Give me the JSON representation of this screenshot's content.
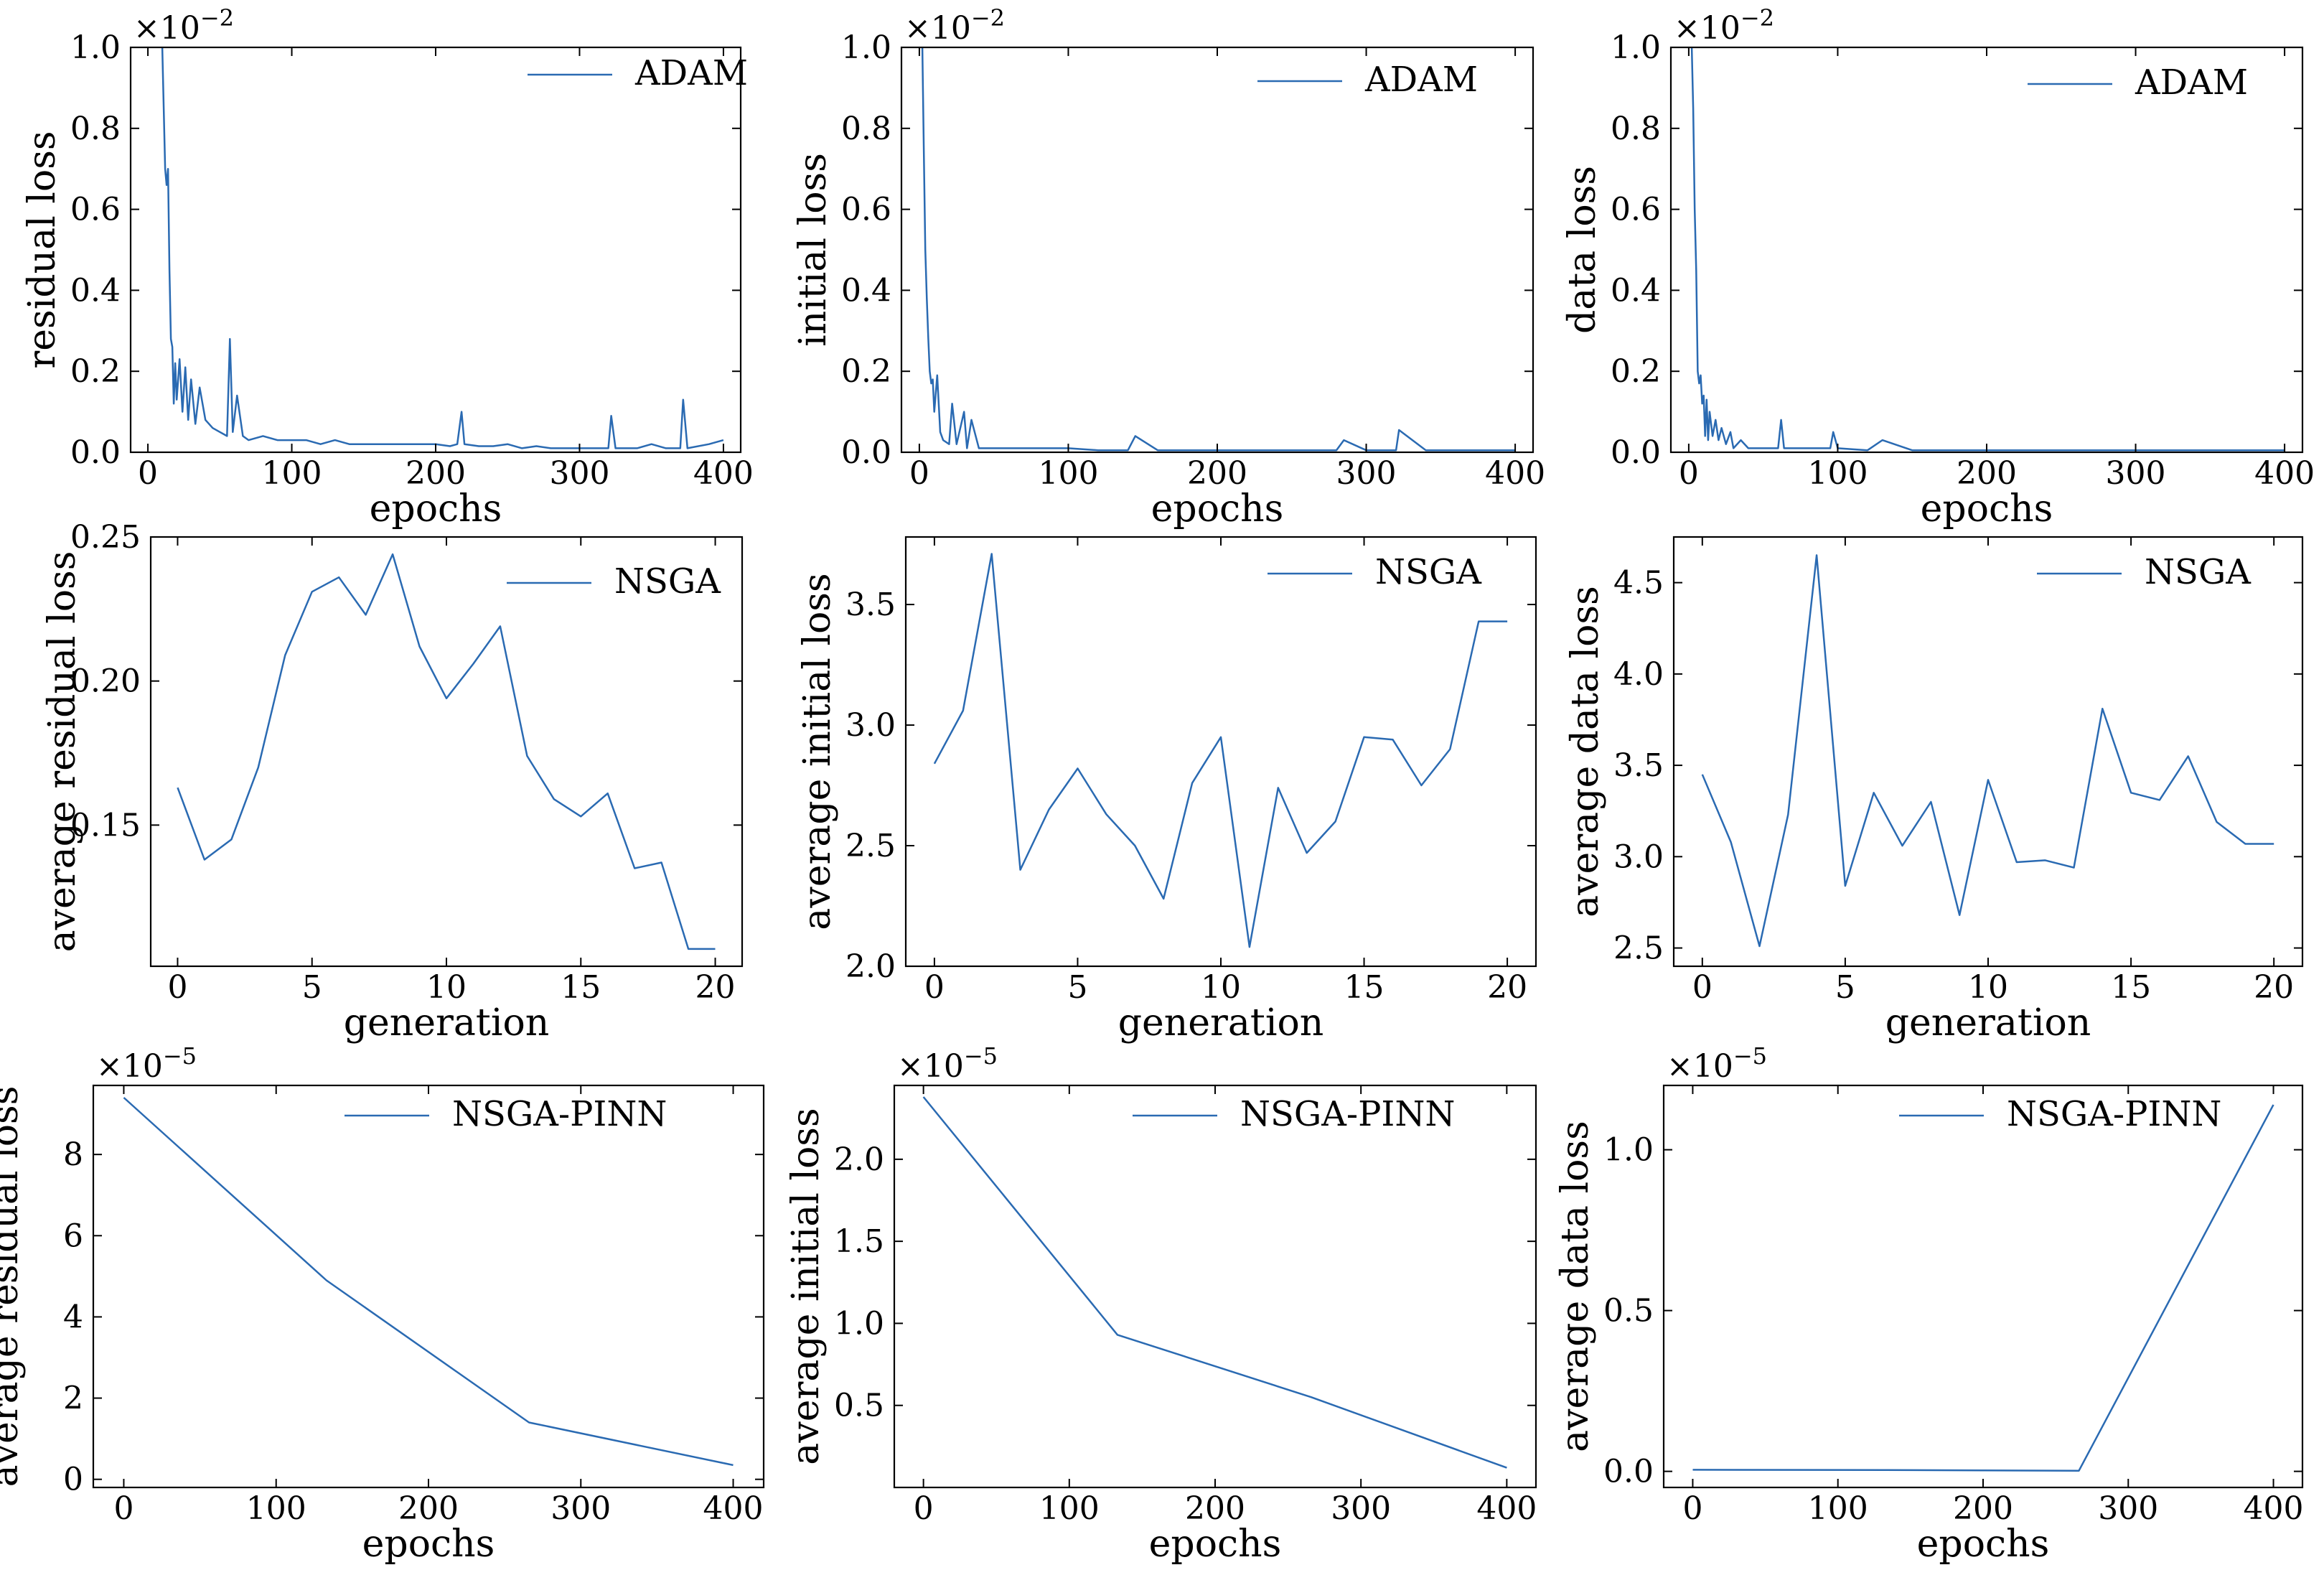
{
  "figure": {
    "line_color": "#2a6ab2",
    "background": "#ffffff"
  },
  "chart_data": [
    {
      "id": "p1",
      "type": "line",
      "legend": "ADAM",
      "xlabel": "epochs",
      "ylabel": "residual loss",
      "exponent_base": "×10",
      "exponent_power": "−2",
      "xlim": [
        -12,
        412
      ],
      "ylim": [
        0,
        1.0
      ],
      "xticks": [
        0,
        100,
        200,
        300,
        400
      ],
      "xtick_labels": [
        "0",
        "100",
        "200",
        "300",
        "400"
      ],
      "yticks": [
        0.0,
        0.2,
        0.4,
        0.6,
        0.8,
        1.0
      ],
      "ytick_labels": [
        "0.0",
        "0.2",
        "0.4",
        "0.6",
        "0.8",
        "1.0"
      ],
      "series": [
        {
          "name": "ADAM",
          "x": [
            10,
            11,
            12,
            13,
            14,
            15,
            16,
            17,
            18,
            19,
            20,
            22,
            24,
            26,
            28,
            30,
            33,
            36,
            40,
            45,
            50,
            55,
            57,
            59,
            62,
            66,
            70,
            80,
            90,
            100,
            110,
            120,
            130,
            140,
            150,
            160,
            170,
            180,
            190,
            200,
            210,
            215,
            218,
            220,
            230,
            240,
            250,
            260,
            270,
            280,
            290,
            300,
            310,
            320,
            322,
            325,
            340,
            350,
            360,
            370,
            372,
            375,
            390,
            400
          ],
          "y": [
            1.0,
            0.85,
            0.7,
            0.66,
            0.7,
            0.45,
            0.28,
            0.26,
            0.12,
            0.22,
            0.13,
            0.23,
            0.1,
            0.21,
            0.08,
            0.18,
            0.07,
            0.16,
            0.08,
            0.06,
            0.05,
            0.04,
            0.28,
            0.05,
            0.14,
            0.04,
            0.03,
            0.04,
            0.03,
            0.03,
            0.03,
            0.02,
            0.03,
            0.02,
            0.02,
            0.02,
            0.02,
            0.02,
            0.02,
            0.02,
            0.015,
            0.02,
            0.1,
            0.02,
            0.015,
            0.015,
            0.02,
            0.01,
            0.015,
            0.01,
            0.01,
            0.01,
            0.01,
            0.01,
            0.09,
            0.01,
            0.01,
            0.02,
            0.01,
            0.01,
            0.13,
            0.01,
            0.02,
            0.03
          ]
        }
      ]
    },
    {
      "id": "p2",
      "type": "line",
      "legend": "ADAM",
      "xlabel": "epochs",
      "ylabel": "initial loss",
      "exponent_base": "×10",
      "exponent_power": "−2",
      "xlim": [
        -12,
        412
      ],
      "ylim": [
        0,
        1.0
      ],
      "xticks": [
        0,
        100,
        200,
        300,
        400
      ],
      "xtick_labels": [
        "0",
        "100",
        "200",
        "300",
        "400"
      ],
      "yticks": [
        0.0,
        0.2,
        0.4,
        0.6,
        0.8,
        1.0
      ],
      "ytick_labels": [
        "0.0",
        "0.2",
        "0.4",
        "0.6",
        "0.8",
        "1.0"
      ],
      "series": [
        {
          "name": "ADAM",
          "x": [
            2,
            3,
            4,
            5,
            6,
            7,
            8,
            9,
            10,
            12,
            14,
            16,
            20,
            22,
            25,
            30,
            32,
            35,
            40,
            60,
            80,
            100,
            120,
            140,
            145,
            160,
            180,
            200,
            250,
            280,
            285,
            300,
            320,
            322,
            340,
            360,
            380,
            400
          ],
          "y": [
            1.0,
            0.75,
            0.5,
            0.38,
            0.28,
            0.2,
            0.17,
            0.18,
            0.1,
            0.19,
            0.05,
            0.03,
            0.02,
            0.12,
            0.02,
            0.1,
            0.01,
            0.08,
            0.01,
            0.01,
            0.01,
            0.01,
            0.005,
            0.005,
            0.04,
            0.005,
            0.005,
            0.005,
            0.005,
            0.005,
            0.03,
            0.005,
            0.005,
            0.055,
            0.005,
            0.005,
            0.005,
            0.005
          ]
        }
      ]
    },
    {
      "id": "p3",
      "type": "line",
      "legend": "ADAM",
      "xlabel": "epochs",
      "ylabel": "data loss",
      "exponent_base": "×10",
      "exponent_power": "−2",
      "xlim": [
        -12,
        412
      ],
      "ylim": [
        0,
        1.0
      ],
      "xticks": [
        0,
        100,
        200,
        300,
        400
      ],
      "xtick_labels": [
        "0",
        "100",
        "200",
        "300",
        "400"
      ],
      "yticks": [
        0.0,
        0.2,
        0.4,
        0.6,
        0.8,
        1.0
      ],
      "ytick_labels": [
        "0.0",
        "0.2",
        "0.4",
        "0.6",
        "0.8",
        "1.0"
      ],
      "series": [
        {
          "name": "ADAM",
          "x": [
            2,
            3,
            4,
            5,
            6,
            7,
            8,
            9,
            10,
            11,
            12,
            13,
            14,
            16,
            18,
            20,
            22,
            25,
            28,
            30,
            35,
            40,
            50,
            60,
            62,
            64,
            80,
            95,
            97,
            100,
            120,
            130,
            150,
            180,
            200,
            250,
            300,
            350,
            400
          ],
          "y": [
            1.0,
            0.85,
            0.6,
            0.45,
            0.2,
            0.17,
            0.19,
            0.12,
            0.14,
            0.04,
            0.13,
            0.03,
            0.1,
            0.04,
            0.08,
            0.03,
            0.06,
            0.02,
            0.05,
            0.01,
            0.03,
            0.01,
            0.01,
            0.01,
            0.08,
            0.01,
            0.01,
            0.01,
            0.05,
            0.01,
            0.005,
            0.03,
            0.005,
            0.005,
            0.005,
            0.005,
            0.005,
            0.005,
            0.005
          ]
        }
      ]
    },
    {
      "id": "p4",
      "type": "line",
      "legend": "NSGA",
      "xlabel": "generation",
      "ylabel": "average residual loss",
      "xlim": [
        -1,
        21
      ],
      "ylim": [
        0.101,
        0.25
      ],
      "xticks": [
        0,
        5,
        10,
        15,
        20
      ],
      "xtick_labels": [
        "0",
        "5",
        "10",
        "15",
        "20"
      ],
      "yticks": [
        0.15,
        0.2,
        0.25
      ],
      "ytick_labels": [
        "0.15",
        "0.20",
        "0.25"
      ],
      "series": [
        {
          "name": "NSGA",
          "x": [
            0,
            1,
            2,
            3,
            4,
            5,
            6,
            7,
            8,
            9,
            10,
            11,
            12,
            13,
            14,
            15,
            16,
            17,
            18,
            19,
            20
          ],
          "y": [
            0.163,
            0.138,
            0.145,
            0.17,
            0.209,
            0.231,
            0.236,
            0.223,
            0.244,
            0.212,
            0.194,
            0.206,
            0.219,
            0.174,
            0.159,
            0.153,
            0.161,
            0.135,
            0.137,
            0.107,
            0.107
          ]
        }
      ]
    },
    {
      "id": "p5",
      "type": "line",
      "legend": "NSGA",
      "xlabel": "generation",
      "ylabel": "average initial loss",
      "xlim": [
        -1,
        21
      ],
      "ylim": [
        2.0,
        3.78
      ],
      "xticks": [
        0,
        5,
        10,
        15,
        20
      ],
      "xtick_labels": [
        "0",
        "5",
        "10",
        "15",
        "20"
      ],
      "yticks": [
        2.0,
        2.5,
        3.0,
        3.5
      ],
      "ytick_labels": [
        "2.0",
        "2.5",
        "3.0",
        "3.5"
      ],
      "series": [
        {
          "name": "NSGA",
          "x": [
            0,
            1,
            2,
            3,
            4,
            5,
            6,
            7,
            8,
            9,
            10,
            11,
            12,
            13,
            14,
            15,
            16,
            17,
            18,
            19,
            20
          ],
          "y": [
            2.84,
            3.06,
            3.71,
            2.4,
            2.65,
            2.82,
            2.63,
            2.5,
            2.28,
            2.76,
            2.95,
            2.08,
            2.74,
            2.47,
            2.6,
            2.95,
            2.94,
            2.75,
            2.9,
            3.43,
            3.43
          ]
        }
      ]
    },
    {
      "id": "p6",
      "type": "line",
      "legend": "NSGA",
      "xlabel": "generation",
      "ylabel": "average data loss",
      "xlim": [
        -1,
        21
      ],
      "ylim": [
        2.4,
        4.75
      ],
      "xticks": [
        0,
        5,
        10,
        15,
        20
      ],
      "xtick_labels": [
        "0",
        "5",
        "10",
        "15",
        "20"
      ],
      "yticks": [
        2.5,
        3.0,
        3.5,
        4.0,
        4.5
      ],
      "ytick_labels": [
        "2.5",
        "3.0",
        "3.5",
        "4.0",
        "4.5"
      ],
      "series": [
        {
          "name": "NSGA",
          "x": [
            0,
            1,
            2,
            3,
            4,
            5,
            6,
            7,
            8,
            9,
            10,
            11,
            12,
            13,
            14,
            15,
            16,
            17,
            18,
            19,
            20
          ],
          "y": [
            3.45,
            3.08,
            2.51,
            3.23,
            4.65,
            2.84,
            3.35,
            3.06,
            3.3,
            2.68,
            3.42,
            2.97,
            2.98,
            2.94,
            3.81,
            3.35,
            3.31,
            3.55,
            3.19,
            3.07,
            3.07
          ]
        }
      ]
    },
    {
      "id": "p7",
      "type": "line",
      "legend": "NSGA-PINN",
      "xlabel": "epochs",
      "ylabel": "average residual loss",
      "exponent_base": "×10",
      "exponent_power": "−5",
      "xlim": [
        -20,
        420
      ],
      "ylim": [
        -0.2,
        9.7
      ],
      "xticks": [
        0,
        100,
        200,
        300,
        400
      ],
      "xtick_labels": [
        "0",
        "100",
        "200",
        "300",
        "400"
      ],
      "yticks": [
        0,
        2,
        4,
        6,
        8
      ],
      "ytick_labels": [
        "0",
        "2",
        "4",
        "6",
        "8"
      ],
      "series": [
        {
          "name": "NSGA-PINN",
          "x": [
            0,
            133,
            266,
            400
          ],
          "y": [
            9.4,
            4.9,
            1.4,
            0.35
          ]
        }
      ]
    },
    {
      "id": "p8",
      "type": "line",
      "legend": "NSGA-PINN",
      "xlabel": "epochs",
      "ylabel": "average initial loss",
      "exponent_base": "×10",
      "exponent_power": "−5",
      "xlim": [
        -20,
        420
      ],
      "ylim": [
        0.0,
        2.45
      ],
      "xticks": [
        0,
        100,
        200,
        300,
        400
      ],
      "xtick_labels": [
        "0",
        "100",
        "200",
        "300",
        "400"
      ],
      "yticks": [
        0.5,
        1.0,
        1.5,
        2.0
      ],
      "ytick_labels": [
        "0.5",
        "1.0",
        "1.5",
        "2.0"
      ],
      "series": [
        {
          "name": "NSGA-PINN",
          "x": [
            0,
            133,
            266,
            400
          ],
          "y": [
            2.38,
            0.93,
            0.55,
            0.12
          ]
        }
      ]
    },
    {
      "id": "p9",
      "type": "line",
      "legend": "NSGA-PINN",
      "xlabel": "epochs",
      "ylabel": "average data loss",
      "exponent_base": "×10",
      "exponent_power": "−5",
      "xlim": [
        -20,
        420
      ],
      "ylim": [
        -0.05,
        1.2
      ],
      "xticks": [
        0,
        100,
        200,
        300,
        400
      ],
      "xtick_labels": [
        "0",
        "100",
        "200",
        "300",
        "400"
      ],
      "yticks": [
        0.0,
        0.5,
        1.0
      ],
      "ytick_labels": [
        "0.0",
        "0.5",
        "1.0"
      ],
      "series": [
        {
          "name": "NSGA-PINN",
          "x": [
            0,
            133,
            266,
            400
          ],
          "y": [
            0.005,
            0.004,
            0.002,
            1.14
          ]
        }
      ]
    }
  ]
}
